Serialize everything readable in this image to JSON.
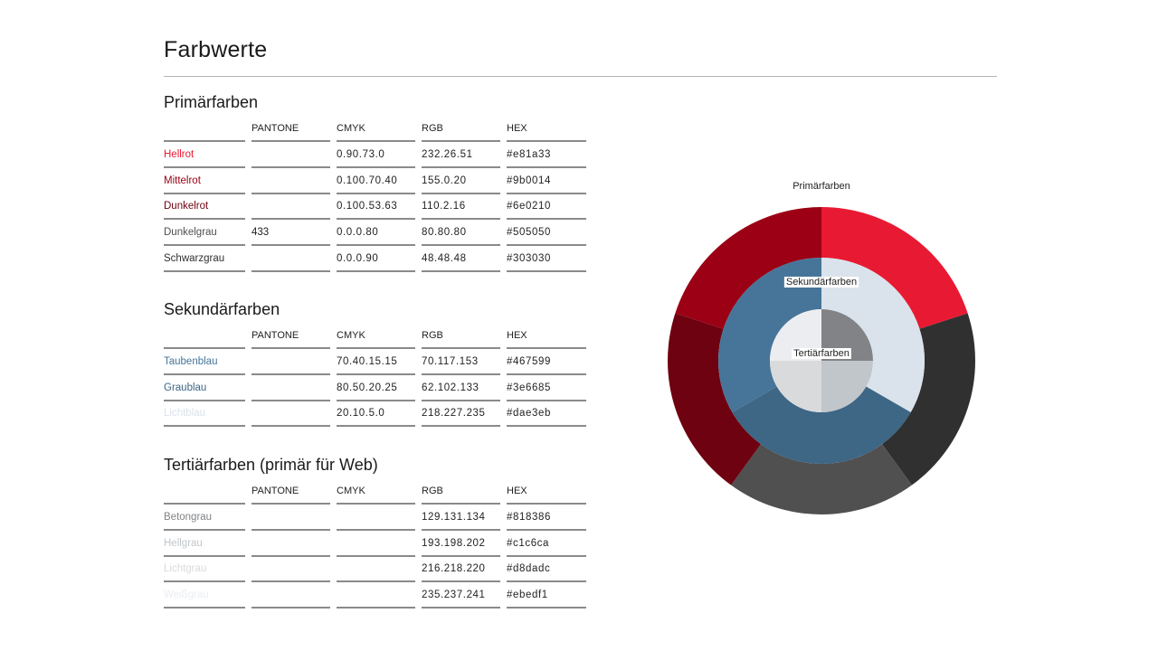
{
  "page": {
    "title": "Farbwerte"
  },
  "columns": [
    "",
    "PANTONE",
    "CMYK",
    "RGB",
    "HEX"
  ],
  "sections": [
    {
      "title": "Primärfarben",
      "rows": [
        {
          "name": "Hellrot",
          "pantone": "",
          "cmyk": "0.90.73.0",
          "rgb": "232.26.51",
          "hex": "#e81a33",
          "label_color": "#e81a33"
        },
        {
          "name": "Mittelrot",
          "pantone": "",
          "cmyk": "0.100.70.40",
          "rgb": "155.0.20",
          "hex": "#9b0014",
          "label_color": "#9b0014"
        },
        {
          "name": "Dunkelrot",
          "pantone": "",
          "cmyk": "0.100.53.63",
          "rgb": "110.2.16",
          "hex": "#6e0210",
          "label_color": "#6e0210"
        },
        {
          "name": "Dunkelgrau",
          "pantone": "433",
          "cmyk": "0.0.0.80",
          "rgb": "80.80.80",
          "hex": "#505050",
          "label_color": "#505050"
        },
        {
          "name": "Schwarzgrau",
          "pantone": "",
          "cmyk": "0.0.0.90",
          "rgb": "48.48.48",
          "hex": "#303030",
          "label_color": "#303030"
        }
      ]
    },
    {
      "title": "Sekundärfarben",
      "rows": [
        {
          "name": "Taubenblau",
          "pantone": "",
          "cmyk": "70.40.15.15",
          "rgb": "70.117.153",
          "hex": "#467599",
          "label_color": "#467599"
        },
        {
          "name": "Graublau",
          "pantone": "",
          "cmyk": "80.50.20.25",
          "rgb": "62.102.133",
          "hex": "#3e6685",
          "label_color": "#3e6685"
        },
        {
          "name": "Lichtblau",
          "pantone": "",
          "cmyk": "20.10.5.0",
          "rgb": "218.227.235",
          "hex": "#dae3eb",
          "label_color": "#dae3eb"
        }
      ]
    },
    {
      "title": "Tertiärfarben (primär für Web)",
      "rows": [
        {
          "name": "Betongrau",
          "pantone": "",
          "cmyk": "",
          "rgb": "129.131.134",
          "hex": "#818386",
          "label_color": "#818386"
        },
        {
          "name": "Hellgrau",
          "pantone": "",
          "cmyk": "",
          "rgb": "193.198.202",
          "hex": "#c1c6ca",
          "label_color": "#c1c6ca"
        },
        {
          "name": "Lichtgrau",
          "pantone": "",
          "cmyk": "",
          "rgb": "216.218.220",
          "hex": "#d8dadc",
          "label_color": "#d8dadc"
        },
        {
          "name": "Weißgrau",
          "pantone": "",
          "cmyk": "",
          "rgb": "235.237.241",
          "hex": "#ebedf1",
          "label_color": "#ebedf1"
        }
      ]
    }
  ],
  "chart_data": {
    "type": "pie",
    "subtype": "nested-donut",
    "title": "Primärfarben",
    "rings": [
      {
        "name": "Primärfarben",
        "slices": [
          {
            "label": "Hellrot",
            "value": 20,
            "color": "#e81a33"
          },
          {
            "label": "Schwarzgrau",
            "value": 20,
            "color": "#303030"
          },
          {
            "label": "Dunkelgrau",
            "value": 20,
            "color": "#505050"
          },
          {
            "label": "Dunkelrot",
            "value": 20,
            "color": "#6e0210"
          },
          {
            "label": "Mittelrot",
            "value": 20,
            "color": "#9b0014"
          }
        ]
      },
      {
        "name": "Sekundärfarben",
        "label": "Sekundärfarben",
        "slices": [
          {
            "label": "Lichtblau",
            "value": 33.33,
            "color": "#dae3eb"
          },
          {
            "label": "Graublau",
            "value": 33.33,
            "color": "#3e6685"
          },
          {
            "label": "Taubenblau",
            "value": 33.34,
            "color": "#467599"
          }
        ]
      },
      {
        "name": "Tertiärfarben",
        "label": "Tertiärfarben",
        "slices": [
          {
            "label": "Betongrau",
            "value": 25,
            "color": "#818386"
          },
          {
            "label": "Hellgrau",
            "value": 25,
            "color": "#c1c6ca"
          },
          {
            "label": "Lichtgrau",
            "value": 25,
            "color": "#d8dadc"
          },
          {
            "label": "Weißgrau",
            "value": 25,
            "color": "#ebedf1"
          }
        ]
      }
    ]
  }
}
